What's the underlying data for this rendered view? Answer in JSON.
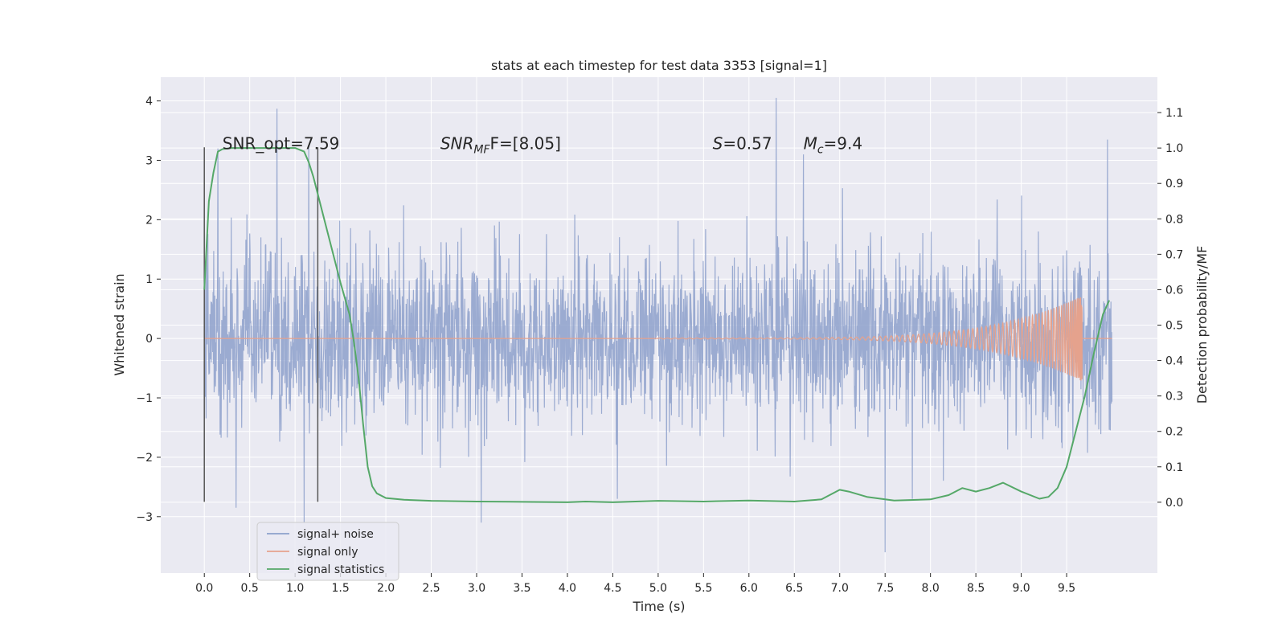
{
  "chart_data": {
    "type": "line",
    "title": "stats at each timestep for test data 3353 [signal=1]",
    "xlabel": "Time (s)",
    "ylabel": "Whitened strain",
    "ylabel_right": "Detection probability/MF",
    "xlim": [
      -0.48,
      10.5
    ],
    "ylim": [
      -3.95,
      4.4
    ],
    "ylim_right": [
      -0.2,
      1.2
    ],
    "x_ticks": [
      "0.0",
      "0.5",
      "1.0",
      "1.5",
      "2.0",
      "2.5",
      "3.0",
      "3.5",
      "4.0",
      "4.5",
      "5.0",
      "5.5",
      "6.0",
      "6.5",
      "7.0",
      "7.5",
      "8.0",
      "8.5",
      "9.0",
      "9.5"
    ],
    "y_ticks": [
      "−3",
      "−2",
      "−1",
      "0",
      "1",
      "2",
      "3",
      "4"
    ],
    "y_ticks_right": [
      "0.0",
      "0.1",
      "0.2",
      "0.3",
      "0.4",
      "0.5",
      "0.6",
      "0.7",
      "0.8",
      "0.9",
      "1.0",
      "1.1"
    ],
    "grid": true,
    "legend_position": "bottom-left",
    "annotations": [
      {
        "label": "SNR_opt=7.59",
        "x": 0.2,
        "y": 3.3
      },
      {
        "label_main": "SNR",
        "label_sub": "MF",
        "label_rest": "F=[8.05]",
        "x": 2.6,
        "y": 3.3
      },
      {
        "label_main": "S",
        "label_rest": "=0.57",
        "x": 5.6,
        "y": 3.3
      },
      {
        "label_main": "M",
        "label_sub": "c",
        "label_rest": "=9.4",
        "x": 6.6,
        "y": 3.3
      }
    ],
    "window_markers": [
      {
        "x": 0.0,
        "ymin": -2.75,
        "ymax": 3.22
      },
      {
        "x": 1.25,
        "ymin": -2.75,
        "ymax": 3.22
      }
    ],
    "series": [
      {
        "name": "signal+ noise",
        "color": "#8da0cb",
        "axis": "left",
        "duration": 10.0,
        "noise_sigma": 0.72,
        "spikes": [
          [
            0.8,
            3.87
          ],
          [
            6.3,
            4.05
          ],
          [
            9.95,
            3.35
          ],
          [
            1.15,
            3.25
          ],
          [
            6.6,
            3.1
          ],
          [
            0.15,
            3.2
          ],
          [
            3.05,
            -3.1
          ],
          [
            7.5,
            -3.6
          ],
          [
            1.1,
            -3.1
          ],
          [
            0.35,
            -2.85
          ],
          [
            7.8,
            -2.7
          ],
          [
            4.55,
            -2.7
          ]
        ]
      },
      {
        "name": "signal only",
        "color": "#e5a28d",
        "axis": "left",
        "chirp_start": 5.0,
        "chirp_end": 9.67,
        "peak_amplitude": 0.72
      },
      {
        "name": "signal statistics",
        "color": "#55a868",
        "axis": "right",
        "x": [
          0.0,
          0.05,
          0.1,
          0.15,
          0.2,
          0.3,
          0.5,
          0.8,
          1.0,
          1.1,
          1.15,
          1.2,
          1.3,
          1.4,
          1.5,
          1.6,
          1.65,
          1.7,
          1.75,
          1.8,
          1.85,
          1.9,
          2.0,
          2.2,
          2.5,
          3.0,
          3.5,
          4.0,
          4.2,
          4.5,
          5.0,
          5.5,
          6.0,
          6.5,
          6.8,
          7.0,
          7.1,
          7.3,
          7.6,
          8.0,
          8.2,
          8.35,
          8.5,
          8.65,
          8.8,
          9.0,
          9.2,
          9.3,
          9.4,
          9.5,
          9.6,
          9.7,
          9.8,
          9.9,
          9.97
        ],
        "y": [
          0.6,
          0.85,
          0.93,
          0.99,
          0.997,
          1.0,
          1.0,
          1.0,
          1.0,
          0.99,
          0.96,
          0.92,
          0.82,
          0.72,
          0.62,
          0.53,
          0.45,
          0.35,
          0.22,
          0.1,
          0.045,
          0.025,
          0.012,
          0.007,
          0.004,
          0.002,
          0.001,
          0.0,
          0.002,
          0.0,
          0.004,
          0.002,
          0.005,
          0.002,
          0.008,
          0.035,
          0.03,
          0.015,
          0.005,
          0.008,
          0.02,
          0.04,
          0.03,
          0.04,
          0.055,
          0.03,
          0.01,
          0.015,
          0.04,
          0.1,
          0.2,
          0.3,
          0.42,
          0.53,
          0.57
        ]
      }
    ]
  }
}
